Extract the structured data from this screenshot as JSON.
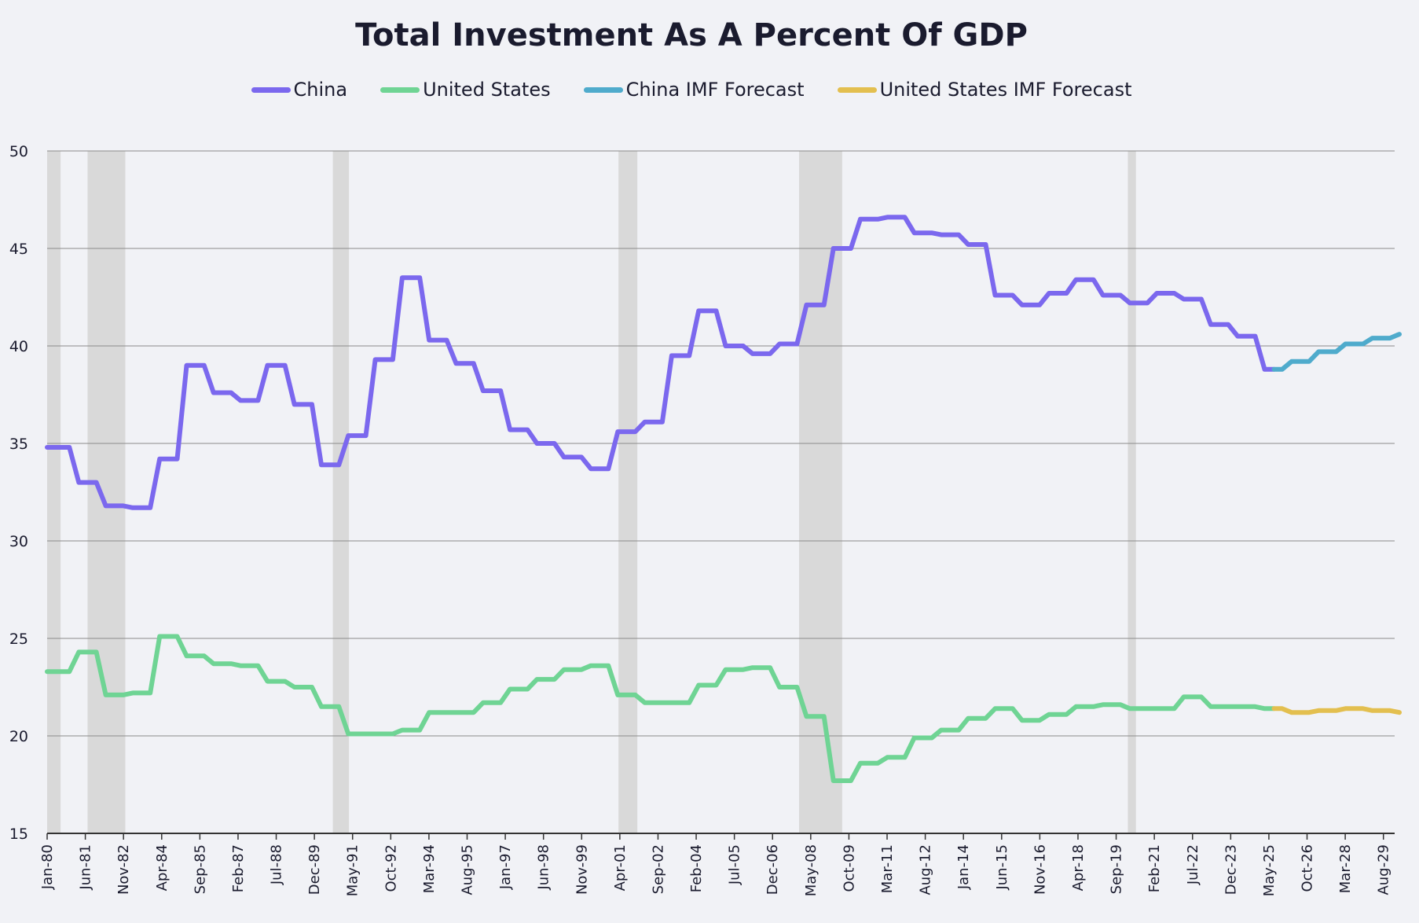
{
  "chart_data": {
    "type": "line",
    "title": "Total Investment As A Percent Of GDP",
    "xlabel": "",
    "ylabel": "",
    "ylim": [
      15,
      50
    ],
    "yticks": [
      15,
      20,
      25,
      30,
      35,
      40,
      45,
      50
    ],
    "xlim": [
      1980,
      2030
    ],
    "legend_position": "top-center",
    "grid": "horizontal",
    "colors": {
      "china": "#7b68ee",
      "us": "#6fd494",
      "china_forecast": "#4fabcc",
      "us_forecast": "#e3bf4f",
      "recession": "#d9d9d9",
      "gridline": "#8a8a8a",
      "axis": "#333333"
    },
    "x_tick_labels": [
      "Jan-80",
      "Jun-81",
      "Nov-82",
      "Apr-84",
      "Sep-85",
      "Feb-87",
      "Jul-88",
      "Dec-89",
      "May-91",
      "Oct-92",
      "Mar-94",
      "Aug-95",
      "Jan-97",
      "Jun-98",
      "Nov-99",
      "Apr-01",
      "Sep-02",
      "Feb-04",
      "Jul-05",
      "Dec-06",
      "May-08",
      "Oct-09",
      "Mar-11",
      "Aug-12",
      "Jan-14",
      "Jun-15",
      "Nov-16",
      "Apr-18",
      "Sep-19",
      "Feb-21",
      "Jul-22",
      "Dec-23",
      "May-25",
      "Oct-26",
      "Mar-28",
      "Aug-29"
    ],
    "recessions": [
      {
        "start": 1980.0,
        "end": 1980.5
      },
      {
        "start": 1981.5,
        "end": 1982.9
      },
      {
        "start": 1990.6,
        "end": 1991.2
      },
      {
        "start": 2001.2,
        "end": 2001.9
      },
      {
        "start": 2007.9,
        "end": 2009.5
      },
      {
        "start": 2020.1,
        "end": 2020.4
      }
    ],
    "series": [
      {
        "name": "China",
        "key": "china",
        "years": [
          1980,
          1981,
          1982,
          1983,
          1984,
          1985,
          1986,
          1987,
          1988,
          1989,
          1990,
          1991,
          1992,
          1993,
          1994,
          1995,
          1996,
          1997,
          1998,
          1999,
          2000,
          2001,
          2002,
          2003,
          2004,
          2005,
          2006,
          2007,
          2008,
          2009,
          2010,
          2011,
          2012,
          2013,
          2014,
          2015,
          2016,
          2017,
          2018,
          2019,
          2020,
          2021,
          2022,
          2023,
          2024
        ],
        "values": [
          34.8,
          33.0,
          31.8,
          31.7,
          34.2,
          39.0,
          37.6,
          37.2,
          39.0,
          37.0,
          33.9,
          35.4,
          39.3,
          43.5,
          40.3,
          39.1,
          37.7,
          35.7,
          35.0,
          34.3,
          33.7,
          35.6,
          36.1,
          39.5,
          41.8,
          40.0,
          39.6,
          40.1,
          42.1,
          45.0,
          46.5,
          46.6,
          45.8,
          45.7,
          45.2,
          42.6,
          42.1,
          42.7,
          43.4,
          42.6,
          42.2,
          42.7,
          42.4,
          41.1,
          40.5
        ]
      },
      {
        "name": "United States",
        "key": "us",
        "years": [
          1980,
          1981,
          1982,
          1983,
          1984,
          1985,
          1986,
          1987,
          1988,
          1989,
          1990,
          1991,
          1992,
          1993,
          1994,
          1995,
          1996,
          1997,
          1998,
          1999,
          2000,
          2001,
          2002,
          2003,
          2004,
          2005,
          2006,
          2007,
          2008,
          2009,
          2010,
          2011,
          2012,
          2013,
          2014,
          2015,
          2016,
          2017,
          2018,
          2019,
          2020,
          2021,
          2022,
          2023,
          2024
        ],
        "values": [
          23.3,
          24.3,
          22.1,
          22.2,
          25.1,
          24.1,
          23.7,
          23.6,
          22.8,
          22.5,
          21.5,
          20.1,
          20.1,
          20.3,
          21.2,
          21.2,
          21.7,
          22.4,
          22.9,
          23.4,
          23.6,
          22.1,
          21.7,
          21.7,
          22.6,
          23.4,
          23.5,
          22.5,
          21.0,
          17.7,
          18.6,
          18.9,
          19.9,
          20.3,
          20.9,
          21.4,
          20.8,
          21.1,
          21.5,
          21.6,
          21.4,
          21.4,
          22.0,
          21.5,
          21.5
        ]
      },
      {
        "name": "China IMF Forecast",
        "key": "china_forecast",
        "years": [
          2025,
          2026,
          2027,
          2028,
          2029,
          2030
        ],
        "values": [
          38.8,
          39.2,
          39.7,
          40.1,
          40.4,
          40.6
        ]
      },
      {
        "name": "United States IMF Forecast",
        "key": "us_forecast",
        "years": [
          2025,
          2026,
          2027,
          2028,
          2029,
          2030
        ],
        "values": [
          21.4,
          21.2,
          21.3,
          21.4,
          21.3,
          21.2
        ]
      }
    ],
    "china_last_actual": {
      "year": 2025,
      "value": 38.8
    },
    "us_last_actual": {
      "year": 2025,
      "value": 21.4
    }
  }
}
